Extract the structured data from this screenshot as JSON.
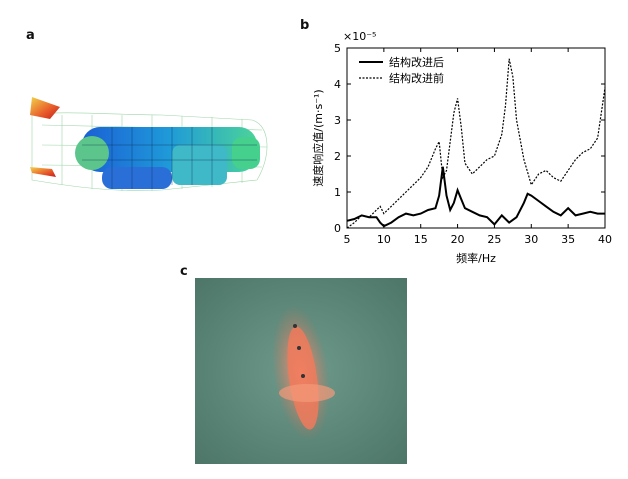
{
  "panels": {
    "a": "a",
    "b": "b",
    "c": "c"
  },
  "chart_data": {
    "type": "line",
    "title": "",
    "xlabel": "频率/Hz",
    "ylabel": "速度响应值/(m·s⁻¹)",
    "yscale_label": "×10⁻⁵",
    "xlim": [
      5,
      40
    ],
    "ylim": [
      0,
      5
    ],
    "xticks": [
      "5",
      "10",
      "15",
      "20",
      "25",
      "30",
      "35",
      "40"
    ],
    "yticks": [
      "0",
      "1",
      "2",
      "3",
      "4",
      "5"
    ],
    "legend": {
      "position": "top-right"
    },
    "series": [
      {
        "name": "结构改进后",
        "style": "solid",
        "x": [
          5,
          6,
          7,
          8,
          9,
          9.5,
          10,
          11,
          12,
          13,
          14,
          15,
          16,
          17,
          17.5,
          18,
          18.5,
          19,
          19.5,
          20,
          20.5,
          21,
          22,
          23,
          24,
          25,
          26,
          27,
          28,
          29,
          29.5,
          30,
          31,
          32,
          33,
          34,
          35,
          36,
          37,
          38,
          39,
          40
        ],
        "y": [
          0.2,
          0.25,
          0.35,
          0.3,
          0.3,
          0.15,
          0.05,
          0.15,
          0.3,
          0.4,
          0.35,
          0.4,
          0.5,
          0.55,
          0.9,
          1.7,
          0.9,
          0.5,
          0.7,
          1.05,
          0.8,
          0.55,
          0.45,
          0.35,
          0.3,
          0.1,
          0.35,
          0.15,
          0.3,
          0.7,
          0.95,
          0.9,
          0.75,
          0.6,
          0.45,
          0.35,
          0.55,
          0.35,
          0.4,
          0.45,
          0.4,
          0.4
        ]
      },
      {
        "name": "结构改进前",
        "style": "dashed",
        "x": [
          5,
          6,
          7,
          8,
          9,
          9.5,
          10,
          11,
          12,
          13,
          14,
          15,
          16,
          17,
          17.5,
          18,
          18.5,
          19,
          19.5,
          20,
          20.5,
          21,
          22,
          23,
          24,
          25,
          26,
          26.5,
          27,
          27.5,
          28,
          29,
          30,
          31,
          32,
          33,
          34,
          35,
          36,
          37,
          38,
          39,
          39.5,
          40
        ],
        "y": [
          0.0,
          0.15,
          0.35,
          0.3,
          0.5,
          0.6,
          0.4,
          0.6,
          0.8,
          1.0,
          1.2,
          1.4,
          1.7,
          2.2,
          2.4,
          1.4,
          1.6,
          2.4,
          3.2,
          3.6,
          2.8,
          1.8,
          1.5,
          1.7,
          1.9,
          2.0,
          2.6,
          3.4,
          4.7,
          4.2,
          3.0,
          1.9,
          1.2,
          1.5,
          1.6,
          1.4,
          1.3,
          1.6,
          1.9,
          2.1,
          2.2,
          2.5,
          3.2,
          3.9
        ]
      }
    ]
  }
}
